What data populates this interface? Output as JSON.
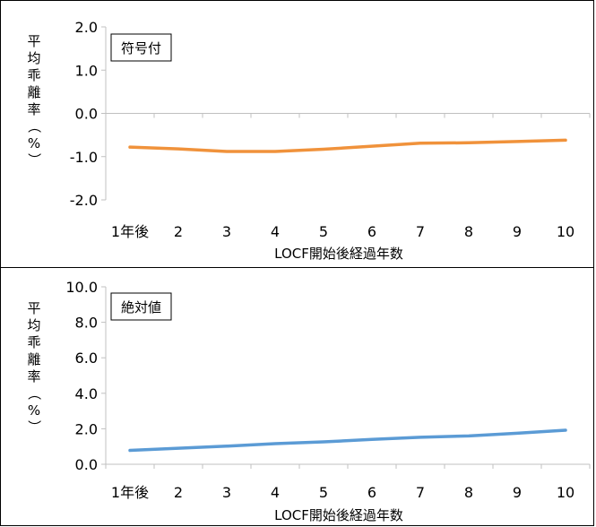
{
  "chart_data": [
    {
      "type": "line",
      "annotation": "符号付",
      "ylabel": "平均乖離率（%）",
      "xlabel": "LOCF開始後経過年数",
      "categories": [
        "1年後",
        "2",
        "3",
        "4",
        "5",
        "6",
        "7",
        "8",
        "9",
        "10"
      ],
      "ylim": [
        -2.0,
        2.0
      ],
      "yticks": [
        "2.0",
        "1.0",
        "0.0",
        "-1.0",
        "-2.0"
      ],
      "ytick_values": [
        2.0,
        1.0,
        0.0,
        -1.0,
        -2.0
      ],
      "series": [
        {
          "values": [
            -0.78,
            -0.82,
            -0.88,
            -0.88,
            -0.83,
            -0.76,
            -0.69,
            -0.68,
            -0.65,
            -0.62
          ],
          "color": "#f0923b"
        }
      ],
      "grid": false,
      "legend": "none"
    },
    {
      "type": "line",
      "annotation": "絶対値",
      "ylabel": "平均乖離率（%）",
      "xlabel": "LOCF開始後経過年数",
      "categories": [
        "1年後",
        "2",
        "3",
        "4",
        "5",
        "6",
        "7",
        "8",
        "9",
        "10"
      ],
      "ylim": [
        0.0,
        10.0
      ],
      "yticks": [
        "10.0",
        "8.0",
        "6.0",
        "4.0",
        "2.0",
        "0.0"
      ],
      "ytick_values": [
        10.0,
        8.0,
        6.0,
        4.0,
        2.0,
        0.0
      ],
      "series": [
        {
          "values": [
            0.78,
            0.9,
            1.02,
            1.16,
            1.26,
            1.4,
            1.52,
            1.6,
            1.75,
            1.92
          ],
          "color": "#5b9bd5"
        }
      ],
      "grid": false,
      "legend": "none"
    }
  ]
}
